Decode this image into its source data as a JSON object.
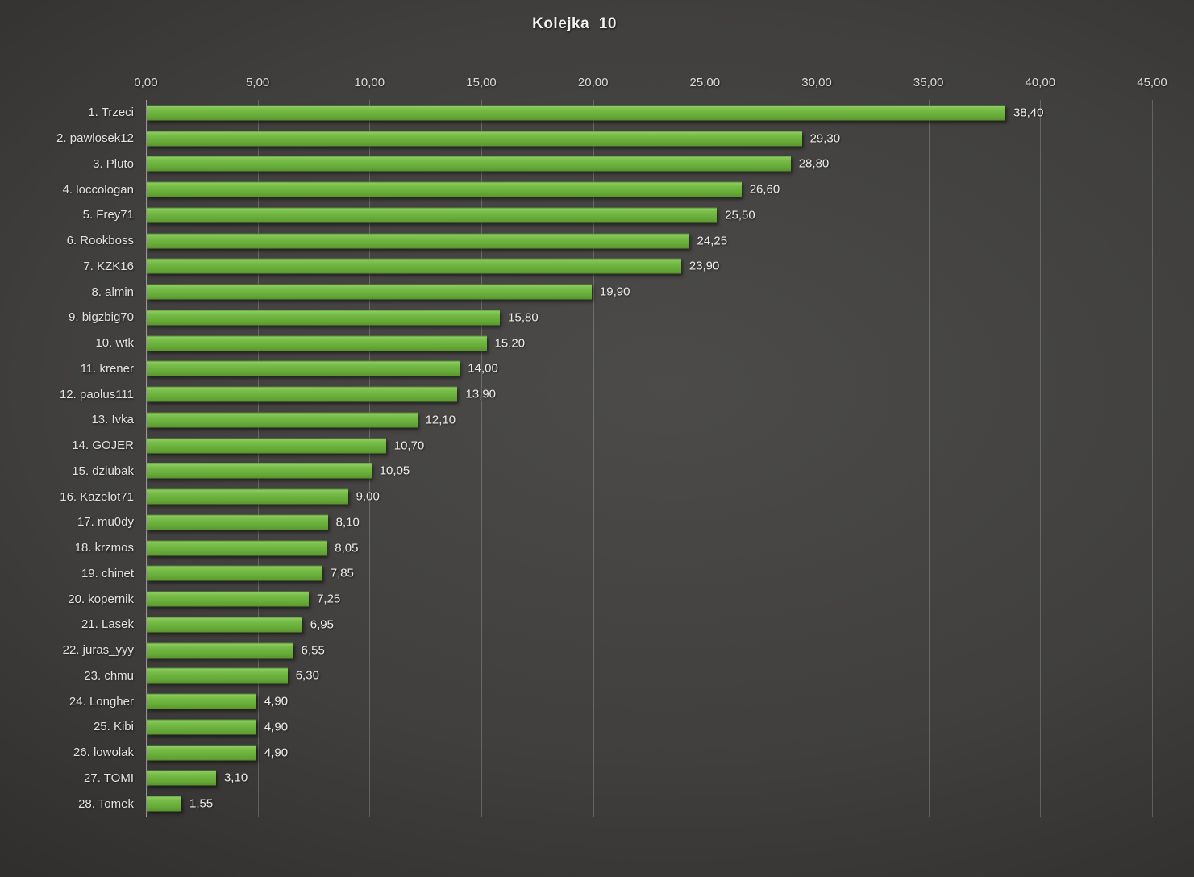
{
  "title": "Kolejka  10",
  "colors": {
    "background_center": "#4c4b49",
    "background_edge": "#252423",
    "bar_green": "#6bb03c",
    "bar_highlight": "#8bcb5e",
    "bar_shadow_edge": "#589230",
    "text": "#e3e3e3",
    "gridline": "rgba(255,255,255,0.20)"
  },
  "chart_data": {
    "type": "bar",
    "orientation": "horizontal",
    "title": "Kolejka  10",
    "categories": [
      "1. Trzeci",
      "2. pawlosek12",
      "3. Pluto",
      "4. loccologan",
      "5. Frey71",
      "6. Rookboss",
      "7. KZK16",
      "8. almin",
      "9. bigzbig70",
      "10. wtk",
      "11. krener",
      "12. paolus111",
      "13. Ivka",
      "14. GOJER",
      "15. dziubak",
      "16. Kazelot71",
      "17. mu0dy",
      "18. krzmos",
      "19. chinet",
      "20. kopernik",
      "21. Lasek",
      "22. juras_yyy",
      "23. chmu",
      "24. Longher",
      "25. Kibi",
      "26. lowolak",
      "27. TOMI",
      "28. Tomek"
    ],
    "values": [
      38.4,
      29.3,
      28.8,
      26.6,
      25.5,
      24.25,
      23.9,
      19.9,
      15.8,
      15.2,
      14.0,
      13.9,
      12.1,
      10.7,
      10.05,
      9.0,
      8.1,
      8.05,
      7.85,
      7.25,
      6.95,
      6.55,
      6.3,
      4.9,
      4.9,
      4.9,
      3.1,
      1.55
    ],
    "value_labels": [
      "38,40",
      "29,30",
      "28,80",
      "26,60",
      "25,50",
      "24,25",
      "23,90",
      "19,90",
      "15,80",
      "15,20",
      "14,00",
      "13,90",
      "12,10",
      "10,70",
      "10,05",
      "9,00",
      "8,10",
      "8,05",
      "7,85",
      "7,25",
      "6,95",
      "6,55",
      "6,30",
      "4,90",
      "4,90",
      "4,90",
      "3,10",
      "1,55"
    ],
    "xlabel": "",
    "ylabel": "",
    "xlim": [
      0,
      45
    ],
    "x_tick_values": [
      0,
      5,
      10,
      15,
      20,
      25,
      30,
      35,
      40,
      45
    ],
    "x_tick_labels": [
      "0,00",
      "5,00",
      "10,00",
      "15,00",
      "20,00",
      "25,00",
      "30,00",
      "35,00",
      "40,00",
      "45,00"
    ],
    "grid": true,
    "legend_position": "none"
  }
}
